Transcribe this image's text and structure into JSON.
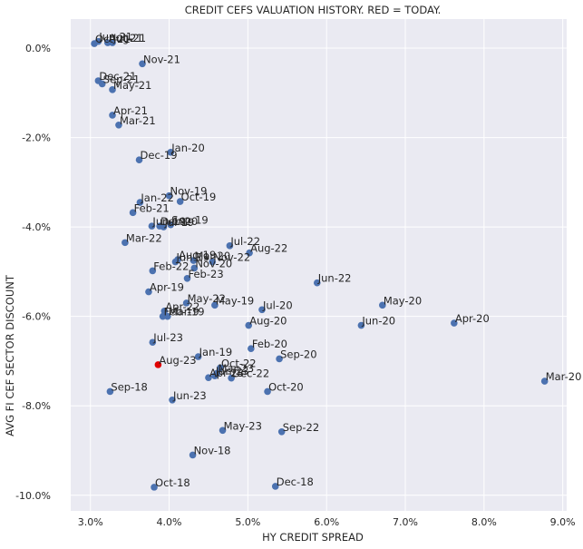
{
  "chart_data": {
    "type": "scatter",
    "title": "CREDIT CEFS VALUATION HISTORY. RED = TODAY.",
    "xlabel": "HY CREDIT SPREAD",
    "ylabel": "AVG FI CEF SECTOR DISCOUNT",
    "xlim": [
      0.0275,
      0.0905
    ],
    "ylim": [
      -0.1035,
      0.0065
    ],
    "x_ticks": [
      0.03,
      0.04,
      0.05,
      0.06,
      0.07,
      0.08,
      0.09
    ],
    "x_tick_labels": [
      "3.0%",
      "4.0%",
      "5.0%",
      "6.0%",
      "7.0%",
      "8.0%",
      "9.0%"
    ],
    "y_ticks": [
      0.0,
      -0.02,
      -0.04,
      -0.06,
      -0.08,
      -0.1
    ],
    "y_tick_labels": [
      "0.0%",
      "-2.0%",
      "-4.0%",
      "-6.0%",
      "-8.0%",
      "-10.0%"
    ],
    "grid": true,
    "colors": {
      "background": "#eaeaf2",
      "grid": "#ffffff",
      "point": "#4c72b0",
      "today": "#e00000"
    },
    "points": [
      {
        "label": "Oct-21",
        "x": 0.0305,
        "y": 0.001
      },
      {
        "label": "Jun-21",
        "x": 0.031,
        "y": 0.0015
      },
      {
        "label": "Aug-21",
        "x": 0.0322,
        "y": 0.0012
      },
      {
        "label": "Jul-21",
        "x": 0.0328,
        "y": 0.0012
      },
      {
        "label": "Nov-21",
        "x": 0.0366,
        "y": -0.0035
      },
      {
        "label": "Dec-21",
        "x": 0.031,
        "y": -0.0073
      },
      {
        "label": "Sep-21",
        "x": 0.0315,
        "y": -0.008
      },
      {
        "label": "May-21",
        "x": 0.0328,
        "y": -0.0093
      },
      {
        "label": "Apr-21",
        "x": 0.0328,
        "y": -0.015
      },
      {
        "label": "Mar-21",
        "x": 0.0336,
        "y": -0.0172
      },
      {
        "label": "Jan-20",
        "x": 0.0402,
        "y": -0.0233
      },
      {
        "label": "Dec-19",
        "x": 0.0362,
        "y": -0.025
      },
      {
        "label": "Nov-19",
        "x": 0.04,
        "y": -0.033
      },
      {
        "label": "Oct-19",
        "x": 0.0414,
        "y": -0.0343
      },
      {
        "label": "Jan-22",
        "x": 0.0363,
        "y": -0.0345
      },
      {
        "label": "Feb-21",
        "x": 0.0354,
        "y": -0.0368
      },
      {
        "label": "Jun-19",
        "x": 0.0378,
        "y": -0.0398
      },
      {
        "label": "Dec-20",
        "x": 0.0388,
        "y": -0.0398
      },
      {
        "label": "Jul-19",
        "x": 0.0393,
        "y": -0.04
      },
      {
        "label": "Sep-19",
        "x": 0.0402,
        "y": -0.0395
      },
      {
        "label": "Mar-22",
        "x": 0.0344,
        "y": -0.0435
      },
      {
        "label": "Jul-22",
        "x": 0.0477,
        "y": -0.0442
      },
      {
        "label": "Aug-22",
        "x": 0.0502,
        "y": -0.0458
      },
      {
        "label": "Aug-19",
        "x": 0.0411,
        "y": -0.0473
      },
      {
        "label": "Jun-19",
        "x": 0.0408,
        "y": -0.0478
      },
      {
        "label": "Mar-20",
        "x": 0.0431,
        "y": -0.0475
      },
      {
        "label": "Nov-22",
        "x": 0.0455,
        "y": -0.0478
      },
      {
        "label": "Nov-20",
        "x": 0.0432,
        "y": -0.0492
      },
      {
        "label": "Feb-22",
        "x": 0.0379,
        "y": -0.0498
      },
      {
        "label": "Feb-23",
        "x": 0.0423,
        "y": -0.0515
      },
      {
        "label": "Jun-22",
        "x": 0.0588,
        "y": -0.0525
      },
      {
        "label": "Apr-19",
        "x": 0.0374,
        "y": -0.0545
      },
      {
        "label": "May-22",
        "x": 0.0422,
        "y": -0.057
      },
      {
        "label": "May-19",
        "x": 0.0458,
        "y": -0.0575
      },
      {
        "label": "May-20",
        "x": 0.0671,
        "y": -0.0575
      },
      {
        "label": "Jul-20",
        "x": 0.0518,
        "y": -0.0585
      },
      {
        "label": "Apr-22",
        "x": 0.0394,
        "y": -0.0588
      },
      {
        "label": "Mar-19",
        "x": 0.0398,
        "y": -0.06
      },
      {
        "label": "Feb-19",
        "x": 0.0392,
        "y": -0.06
      },
      {
        "label": "Apr-20",
        "x": 0.0762,
        "y": -0.0615
      },
      {
        "label": "Aug-20",
        "x": 0.0501,
        "y": -0.062
      },
      {
        "label": "Jun-20",
        "x": 0.0644,
        "y": -0.062
      },
      {
        "label": "Jul-23",
        "x": 0.0379,
        "y": -0.0658
      },
      {
        "label": "Feb-20",
        "x": 0.0504,
        "y": -0.0672
      },
      {
        "label": "Jan-19",
        "x": 0.0437,
        "y": -0.069
      },
      {
        "label": "Sep-20",
        "x": 0.054,
        "y": -0.0695
      },
      {
        "label": "Aug-23",
        "x": 0.0386,
        "y": -0.0708,
        "today": true
      },
      {
        "label": "Oct-22",
        "x": 0.0465,
        "y": -0.0715
      },
      {
        "label": "Mar-23",
        "x": 0.0461,
        "y": -0.0727
      },
      {
        "label": "Jan-23",
        "x": 0.0458,
        "y": -0.0733
      },
      {
        "label": "Apr-23",
        "x": 0.045,
        "y": -0.0737
      },
      {
        "label": "Dec-22",
        "x": 0.0479,
        "y": -0.0738
      },
      {
        "label": "Mar-20",
        "x": 0.0877,
        "y": -0.0745
      },
      {
        "label": "Sep-18",
        "x": 0.0325,
        "y": -0.0768
      },
      {
        "label": "Oct-20",
        "x": 0.0525,
        "y": -0.0768
      },
      {
        "label": "Jun-23",
        "x": 0.0404,
        "y": -0.0787
      },
      {
        "label": "May-23",
        "x": 0.0468,
        "y": -0.0855
      },
      {
        "label": "Sep-22",
        "x": 0.0543,
        "y": -0.0858
      },
      {
        "label": "Nov-18",
        "x": 0.043,
        "y": -0.091
      },
      {
        "label": "Oct-18",
        "x": 0.0381,
        "y": -0.0982
      },
      {
        "label": "Dec-18",
        "x": 0.0535,
        "y": -0.098
      }
    ]
  }
}
